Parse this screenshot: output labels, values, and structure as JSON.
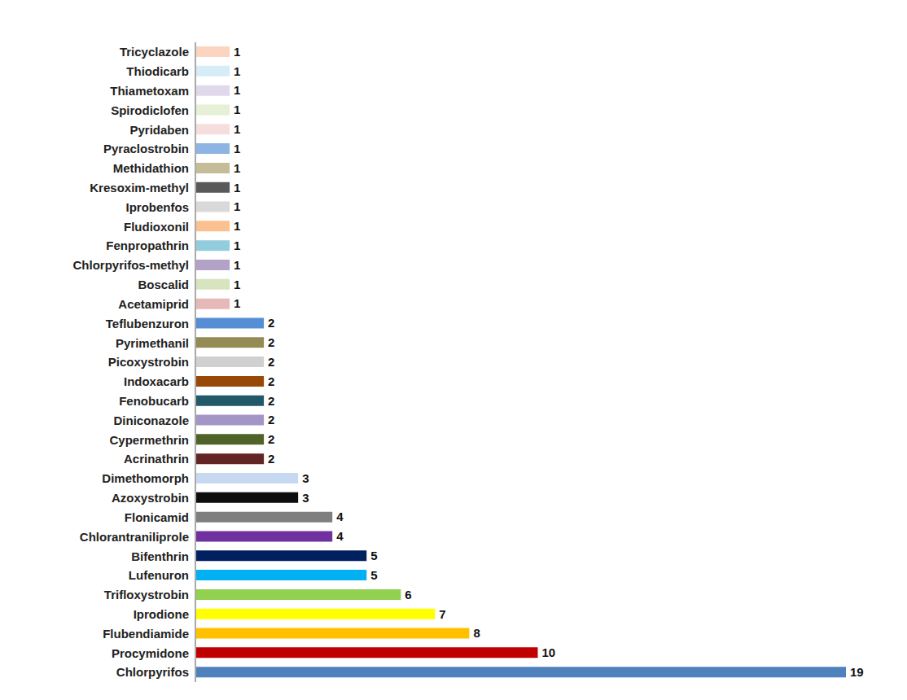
{
  "chart_data": {
    "type": "bar",
    "orientation": "horizontal",
    "categories": [
      "Tricyclazole",
      "Thiodicarb",
      "Thiametoxam",
      "Spirodiclofen",
      "Pyridaben",
      "Pyraclostrobin",
      "Methidathion",
      "Kresoxim-methyl",
      "Iprobenfos",
      "Fludioxonil",
      "Fenpropathrin",
      "Chlorpyrifos-methyl",
      "Boscalid",
      "Acetamiprid",
      "Teflubenzuron",
      "Pyrimethanil",
      "Picoxystrobin",
      "Indoxacarb",
      "Fenobucarb",
      "Diniconazole",
      "Cypermethrin",
      "Acrinathrin",
      "Dimethomorph",
      "Azoxystrobin",
      "Flonicamid",
      "Chlorantraniliprole",
      "Bifenthrin",
      "Lufenuron",
      "Trifloxystrobin",
      "Iprodione",
      "Flubendiamide",
      "Procymidone",
      "Chlorpyrifos"
    ],
    "values": [
      1,
      1,
      1,
      1,
      1,
      1,
      1,
      1,
      1,
      1,
      1,
      1,
      1,
      1,
      2,
      2,
      2,
      2,
      2,
      2,
      2,
      2,
      3,
      3,
      4,
      4,
      5,
      5,
      6,
      7,
      8,
      10,
      19
    ],
    "colors": [
      "#fbd5c0",
      "#d6ecf6",
      "#e0d9ec",
      "#e5f0d6",
      "#f7dede",
      "#8eb4e3",
      "#c4bd97",
      "#595959",
      "#d9d9d9",
      "#fac090",
      "#93cddd",
      "#b3a2c7",
      "#d7e4bd",
      "#e6b9b8",
      "#558ed5",
      "#948a54",
      "#d0d0d0",
      "#984807",
      "#215968",
      "#a495c7",
      "#4f6228",
      "#632523",
      "#c6d9f1",
      "#0d0d0d",
      "#7f7f7f",
      "#7030a0",
      "#002060",
      "#00b0f0",
      "#92d050",
      "#ffff00",
      "#ffc000",
      "#c00000",
      "#4f81bd"
    ],
    "xlim": [
      0,
      19
    ],
    "data_labels": true,
    "tick_labels": "y",
    "grid": false
  }
}
